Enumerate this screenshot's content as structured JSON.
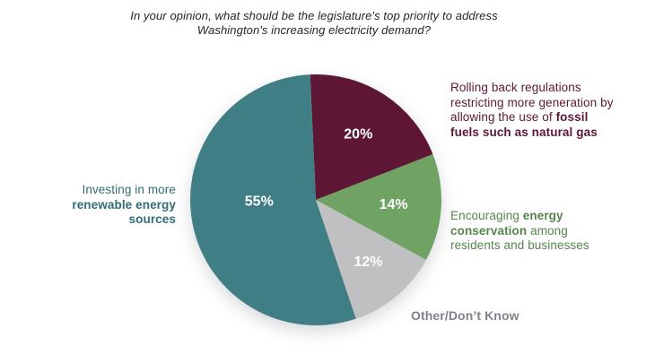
{
  "title": {
    "lines": [
      "In your opinion, what should be the legislature's top priority to address",
      "Washington's increasing electricity demand?"
    ]
  },
  "colors": {
    "teal": "#407e85",
    "maroon": "#5d1735",
    "green": "#70a263",
    "gray": "#c0c0c2",
    "title_text": "#23262c",
    "teal_text": "#316d76",
    "maroon_text": "#5d1735",
    "green_text": "#55854c",
    "gray_text": "#80818c",
    "percent_text": "#ffffff"
  },
  "chart_data": {
    "type": "pie",
    "title": "In your opinion, what should be the legislature's top priority to address Washington's increasing electricity demand?",
    "legend_position": "labels-around-pie",
    "start_angle_deg": -2.6,
    "clockwise": true,
    "slices": [
      {
        "name": "fossil-fuels",
        "value": 20,
        "pct_label": "20%",
        "color": "#5d1735",
        "label": "Rolling back regulations restricting more generation by allowing the use of fossil fuels such as natural gas"
      },
      {
        "name": "energy-conservation",
        "value": 14,
        "pct_label": "14%",
        "color": "#70a263",
        "label": "Encouraging energy conservation among residents and businesses"
      },
      {
        "name": "other-dont-know",
        "value": 12,
        "pct_label": "12%",
        "color": "#c0c0c2",
        "label": "Other/Don’t Know"
      },
      {
        "name": "renewable-energy",
        "value": 55,
        "pct_label": "55%",
        "color": "#407e85",
        "label": "Investing in more renewable energy sources"
      }
    ]
  },
  "callouts": {
    "fossil": {
      "lines": [
        [
          {
            "t": "Rolling back regulations"
          }
        ],
        [
          {
            "t": "restricting more generation by"
          }
        ],
        [
          {
            "t": "allowing the use of "
          },
          {
            "t": "fossil",
            "b": true
          }
        ],
        [
          {
            "t": "fuels such as natural gas",
            "b": true
          }
        ]
      ]
    },
    "conservation": {
      "lines": [
        [
          {
            "t": "Encouraging "
          },
          {
            "t": "energy",
            "b": true
          }
        ],
        [
          {
            "t": "conservation",
            "b": true
          },
          {
            "t": " among"
          }
        ],
        [
          {
            "t": "residents and businesses"
          }
        ]
      ]
    },
    "renewable": {
      "lines": [
        [
          {
            "t": "Investing in more"
          }
        ],
        [
          {
            "t": "renewable energy",
            "b": true
          }
        ],
        [
          {
            "t": "sources",
            "b": true
          }
        ]
      ]
    },
    "other": {
      "lines": [
        [
          {
            "t": "Other/Don’t Know",
            "b": true
          }
        ]
      ]
    }
  }
}
